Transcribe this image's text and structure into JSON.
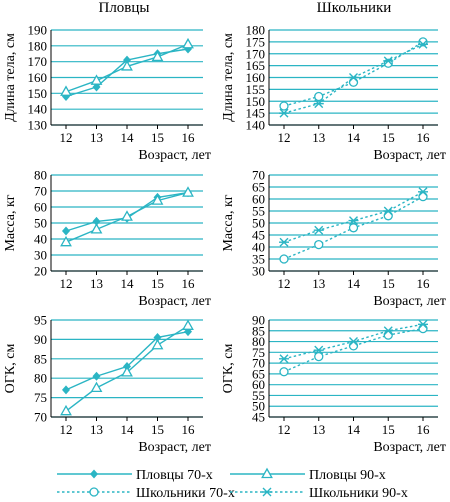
{
  "colors": {
    "grid": "#2bb5c4",
    "series": "#2bb5c4",
    "text": "#000000"
  },
  "columns": [
    "Пловцы",
    "Школьники"
  ],
  "legend": [
    {
      "name": "Пловцы 70-х",
      "marker": "diamond",
      "line": "solid"
    },
    {
      "name": "Пловцы 90-х",
      "marker": "triangle",
      "line": "solid"
    },
    {
      "name": "Школьники 70-х",
      "marker": "circle",
      "line": "dotted"
    },
    {
      "name": "Школьники 90-х",
      "marker": "asterisk",
      "line": "dotted"
    }
  ],
  "chart_data": [
    {
      "type": "line",
      "id": "swim-height",
      "title": "Пловцы",
      "ylabel": "Длина тела, см",
      "xlabel": "Возраст, лет",
      "categories": [
        "12",
        "13",
        "14",
        "15",
        "16"
      ],
      "ylim": [
        130,
        190
      ],
      "yticks": [
        "130",
        "140",
        "150",
        "160",
        "170",
        "180",
        "190"
      ],
      "grid": true,
      "series": [
        {
          "name": "Пловцы 70-х",
          "values": [
            148,
            154,
            171,
            175,
            178
          ],
          "marker": "diamond",
          "line": "solid"
        },
        {
          "name": "Пловцы 90-х",
          "values": [
            151,
            158,
            167,
            173,
            181
          ],
          "marker": "triangle",
          "line": "solid"
        }
      ]
    },
    {
      "type": "line",
      "id": "school-height",
      "title": "Школьники",
      "ylabel": "Длина тела, см",
      "xlabel": "Возраст, лет",
      "categories": [
        "12",
        "13",
        "14",
        "15",
        "16"
      ],
      "ylim": [
        140,
        180
      ],
      "yticks": [
        "140",
        "145",
        "150",
        "155",
        "160",
        "165",
        "170",
        "175",
        "180"
      ],
      "grid": true,
      "series": [
        {
          "name": "Школьники 70-х",
          "values": [
            148,
            152,
            158,
            166,
            175
          ],
          "marker": "circle",
          "line": "dotted"
        },
        {
          "name": "Школьники 90-х",
          "values": [
            145,
            149,
            160,
            167,
            174
          ],
          "marker": "asterisk",
          "line": "dotted"
        }
      ]
    },
    {
      "type": "line",
      "id": "swim-mass",
      "title": "",
      "ylabel": "Масса, кг",
      "xlabel": "Возраст, лет",
      "categories": [
        "12",
        "13",
        "14",
        "15",
        "16"
      ],
      "ylim": [
        20,
        80
      ],
      "yticks": [
        "20",
        "30",
        "40",
        "50",
        "60",
        "70",
        "80"
      ],
      "grid": true,
      "series": [
        {
          "name": "Пловцы 70-х",
          "values": [
            45,
            51,
            53,
            66,
            69
          ],
          "marker": "diamond",
          "line": "solid"
        },
        {
          "name": "Пловцы 90-х",
          "values": [
            38,
            46,
            54,
            64,
            69
          ],
          "marker": "triangle",
          "line": "solid"
        }
      ]
    },
    {
      "type": "line",
      "id": "school-mass",
      "title": "",
      "ylabel": "Масса, кг",
      "xlabel": "Возраст, лет",
      "categories": [
        "12",
        "13",
        "14",
        "15",
        "16"
      ],
      "ylim": [
        30,
        70
      ],
      "yticks": [
        "30",
        "35",
        "40",
        "45",
        "50",
        "55",
        "60",
        "65",
        "70"
      ],
      "grid": true,
      "series": [
        {
          "name": "Школьники 70-х",
          "values": [
            35,
            41,
            48,
            53,
            61
          ],
          "marker": "circle",
          "line": "dotted"
        },
        {
          "name": "Школьники 90-х",
          "values": [
            42,
            47,
            51,
            55,
            63
          ],
          "marker": "asterisk",
          "line": "dotted"
        }
      ]
    },
    {
      "type": "line",
      "id": "swim-chest",
      "title": "",
      "ylabel": "ОГК, см",
      "xlabel": "Возраст, лет",
      "categories": [
        "12",
        "13",
        "14",
        "15",
        "16"
      ],
      "ylim": [
        70,
        95
      ],
      "yticks": [
        "70",
        "75",
        "80",
        "85",
        "90",
        "95"
      ],
      "grid": true,
      "series": [
        {
          "name": "Пловцы 70-х",
          "values": [
            77,
            80.5,
            83,
            90.5,
            92
          ],
          "marker": "diamond",
          "line": "solid"
        },
        {
          "name": "Пловцы 90-х",
          "values": [
            71.5,
            77.5,
            81.5,
            88.5,
            93.5
          ],
          "marker": "triangle",
          "line": "solid"
        }
      ]
    },
    {
      "type": "line",
      "id": "school-chest",
      "title": "",
      "ylabel": "ОГК, см",
      "xlabel": "Возраст, лет",
      "categories": [
        "12",
        "13",
        "14",
        "15",
        "16"
      ],
      "ylim": [
        45,
        90
      ],
      "yticks": [
        "45",
        "50",
        "55",
        "60",
        "65",
        "70",
        "75",
        "80",
        "85",
        "90"
      ],
      "grid": true,
      "series": [
        {
          "name": "Школьники 70-х",
          "values": [
            66,
            73,
            78,
            83,
            86
          ],
          "marker": "circle",
          "line": "dotted"
        },
        {
          "name": "Школьники 90-х",
          "values": [
            72,
            76,
            80,
            85,
            88
          ],
          "marker": "asterisk",
          "line": "dotted"
        }
      ]
    }
  ]
}
